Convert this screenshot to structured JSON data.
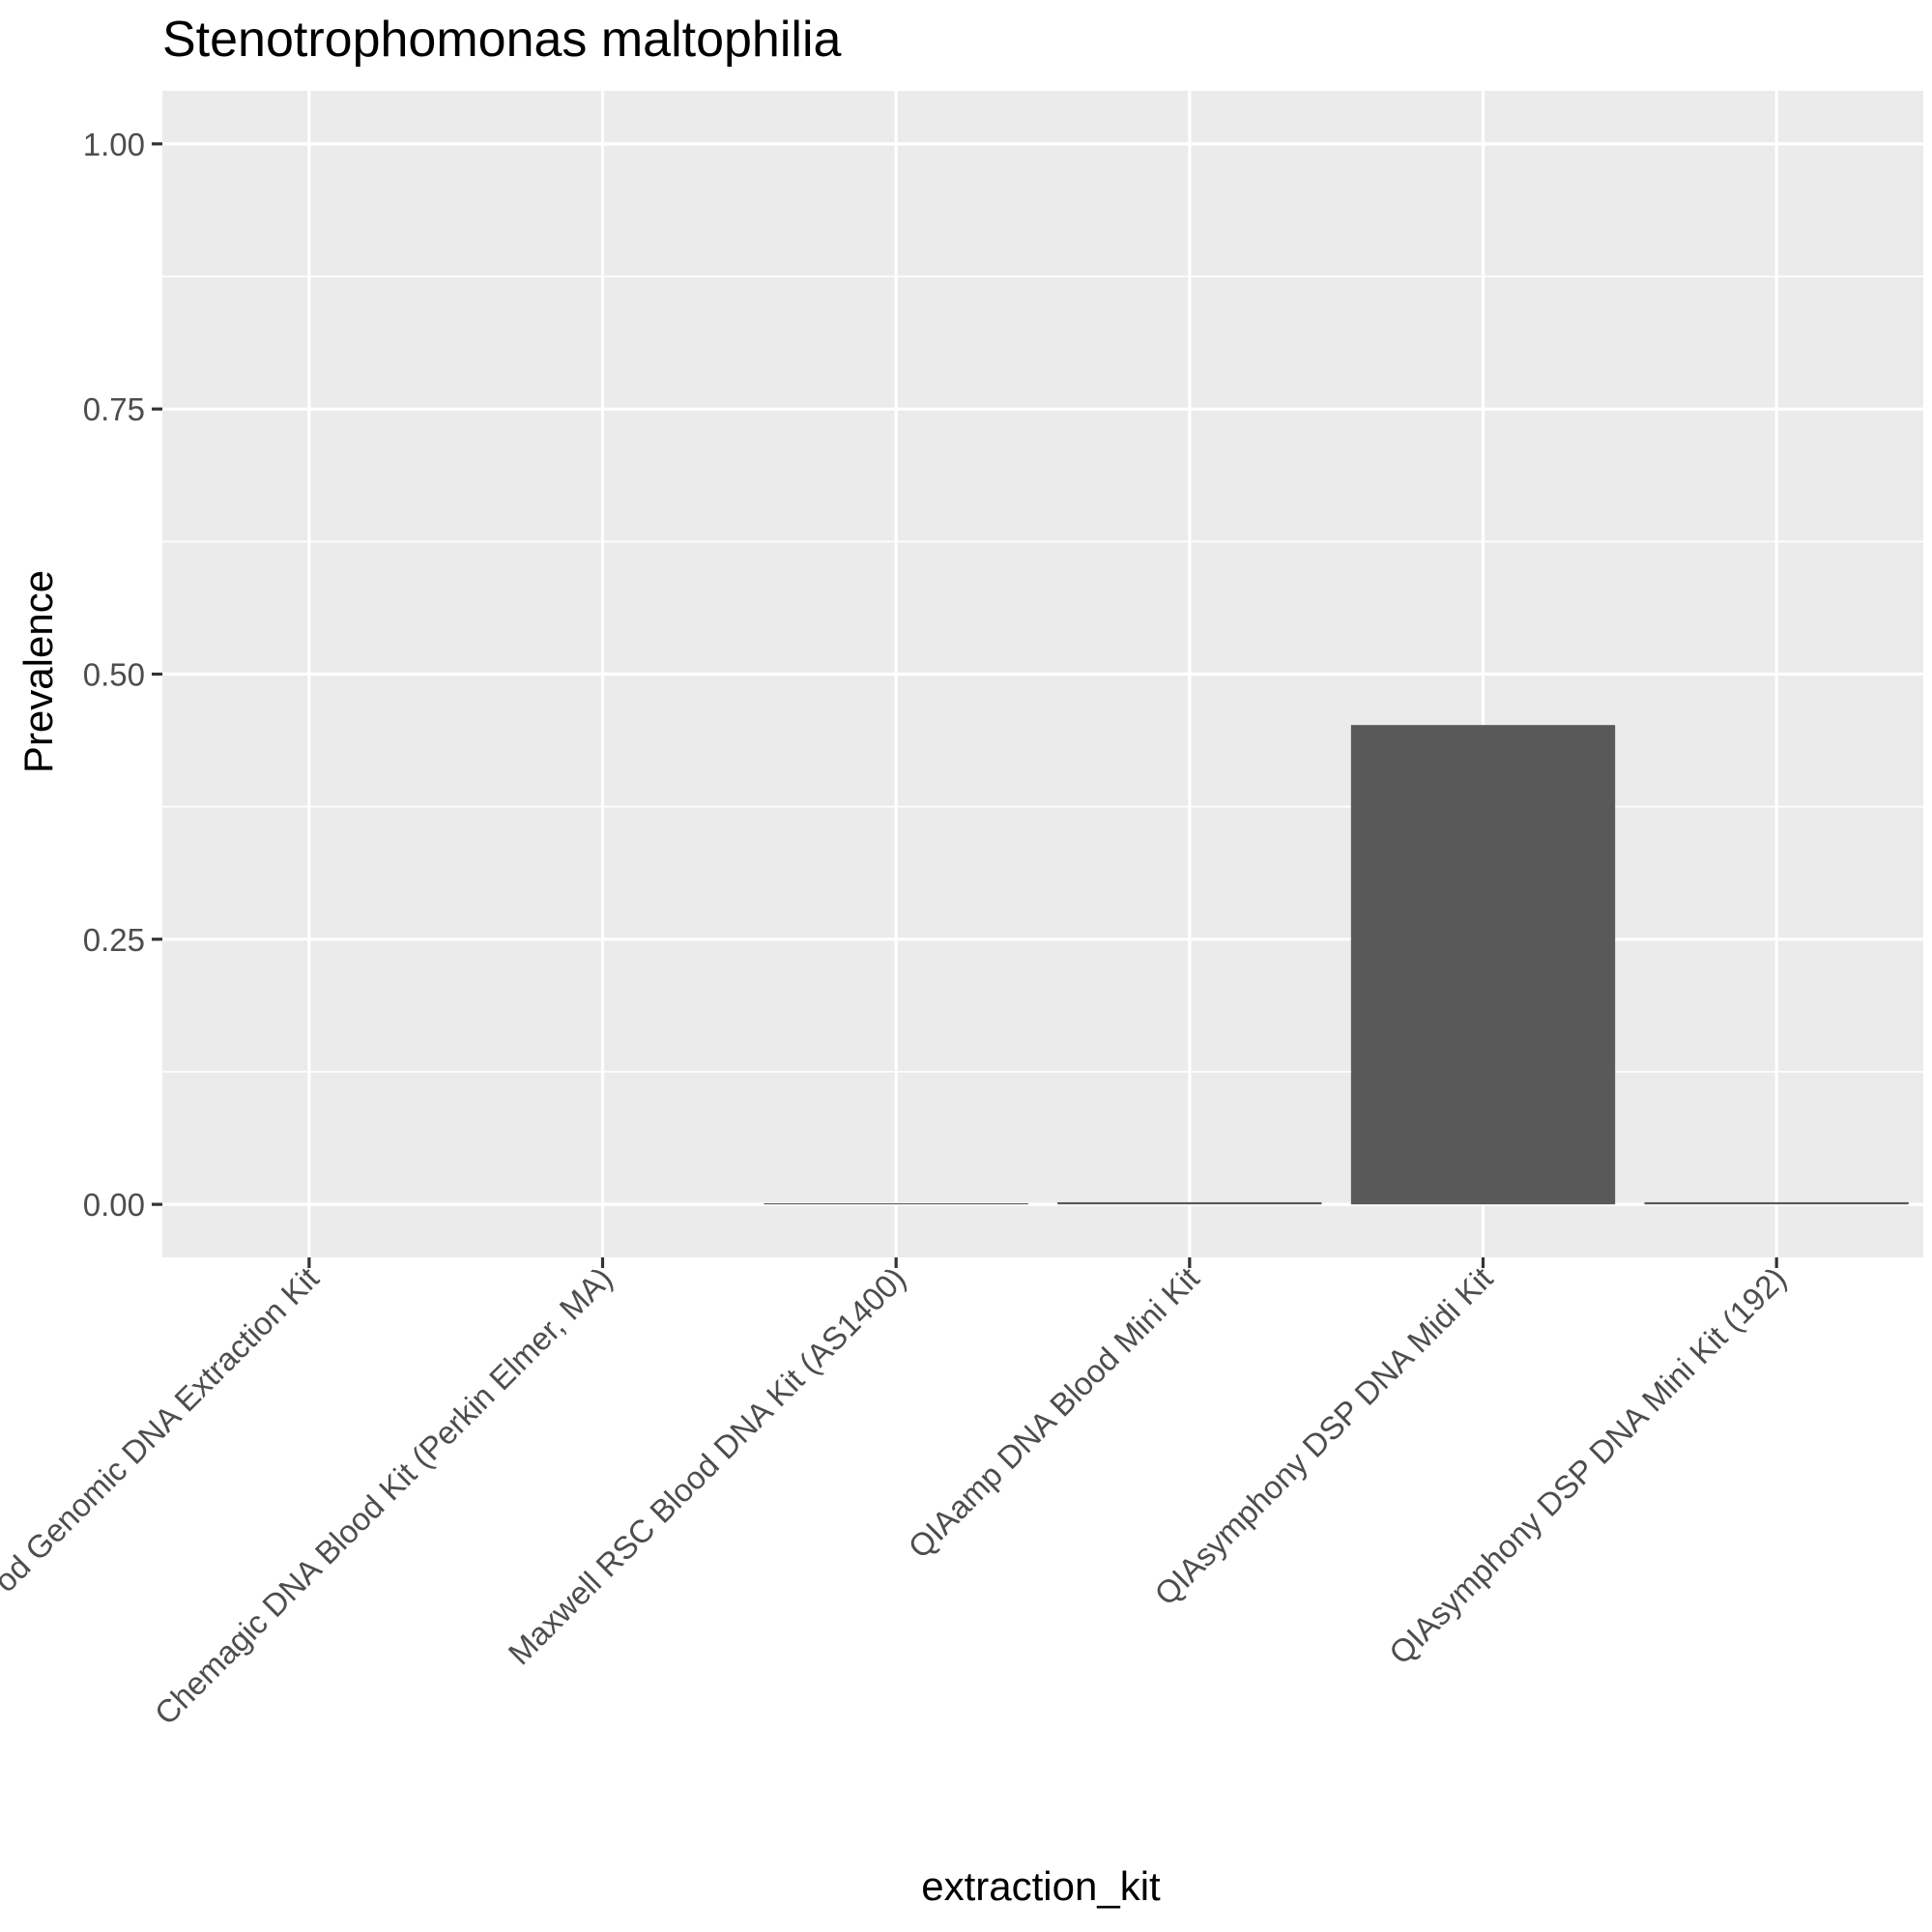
{
  "chart_data": {
    "type": "bar",
    "title": "Stenotrophomonas maltophilia",
    "xlabel": "extraction_kit",
    "ylabel": "Prevalence",
    "categories": [
      "od Genomic DNA Extraction Kit",
      "Chemagic DNA Blood Kit (Perkin Elmer, MA)",
      "Maxwell RSC Blood DNA Kit (AS1400)",
      "QIAamp DNA Blood Mini Kit",
      "QIAsymphony DSP DNA Midi Kit",
      "QIAsymphony DSP DNA Mini Kit (192)"
    ],
    "values": [
      0,
      0,
      0.001,
      0.002,
      0.452,
      0.002
    ],
    "ylim": [
      -0.05,
      1.05
    ],
    "yticks": [
      0,
      0.25,
      0.5,
      0.75,
      1
    ],
    "ytick_labels": [
      "0.00",
      "0.25",
      "0.50",
      "0.75",
      "1.00"
    ],
    "grid": true,
    "colors": {
      "panel_background": "#ebebeb",
      "gridline": "#ffffff",
      "bar_fill": "#595959",
      "tick": "#333333",
      "tick_label": "#4d4d4d"
    }
  }
}
